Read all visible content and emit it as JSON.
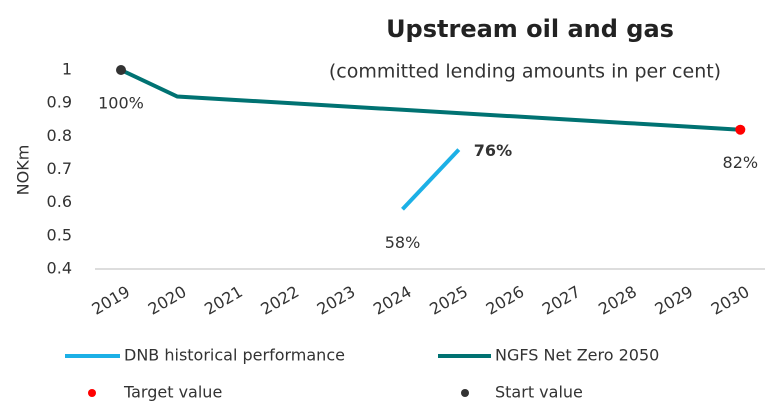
{
  "chart_data": {
    "type": "line",
    "title": "Upstream oil and gas",
    "subtitle": "(committed lending amounts in per cent)",
    "y_label": "NOKm",
    "categories": [
      "2019",
      "2020",
      "2021",
      "2022",
      "2023",
      "2024",
      "2025",
      "2026",
      "2027",
      "2028",
      "2029",
      "2030"
    ],
    "ylim": [
      0.4,
      1
    ],
    "yticks": [
      0.4,
      0.5,
      0.6,
      0.7,
      0.8,
      0.9,
      1
    ],
    "grid": false,
    "legend": "bottom",
    "series": [
      {
        "name": "DNB  historical performance",
        "color": "#1cb0e6",
        "kind": "line",
        "values": [
          null,
          null,
          null,
          null,
          null,
          0.58,
          0.76,
          null,
          null,
          null,
          null,
          null
        ],
        "value_labels": [
          null,
          null,
          null,
          null,
          null,
          "58%",
          "76%",
          null,
          null,
          null,
          null,
          null
        ]
      },
      {
        "name": "NGFS Net Zero 2050",
        "color": "#007272",
        "kind": "line",
        "values": [
          1,
          0.92,
          0.91,
          0.9,
          0.89,
          0.88,
          0.87,
          0.86,
          0.85,
          0.84,
          0.83,
          0.82
        ]
      },
      {
        "name": "Target value",
        "color": "#ff0000",
        "kind": "marker",
        "values": [
          null,
          null,
          null,
          null,
          null,
          null,
          null,
          null,
          null,
          null,
          null,
          0.82
        ],
        "value_labels": [
          null,
          null,
          null,
          null,
          null,
          null,
          null,
          null,
          null,
          null,
          null,
          "82%"
        ]
      },
      {
        "name": "Start value",
        "color": "#333333",
        "kind": "marker",
        "values": [
          1,
          null,
          null,
          null,
          null,
          null,
          null,
          null,
          null,
          null,
          null,
          null
        ],
        "value_labels": [
          "100%",
          null,
          null,
          null,
          null,
          null,
          null,
          null,
          null,
          null,
          null,
          null
        ]
      }
    ]
  }
}
